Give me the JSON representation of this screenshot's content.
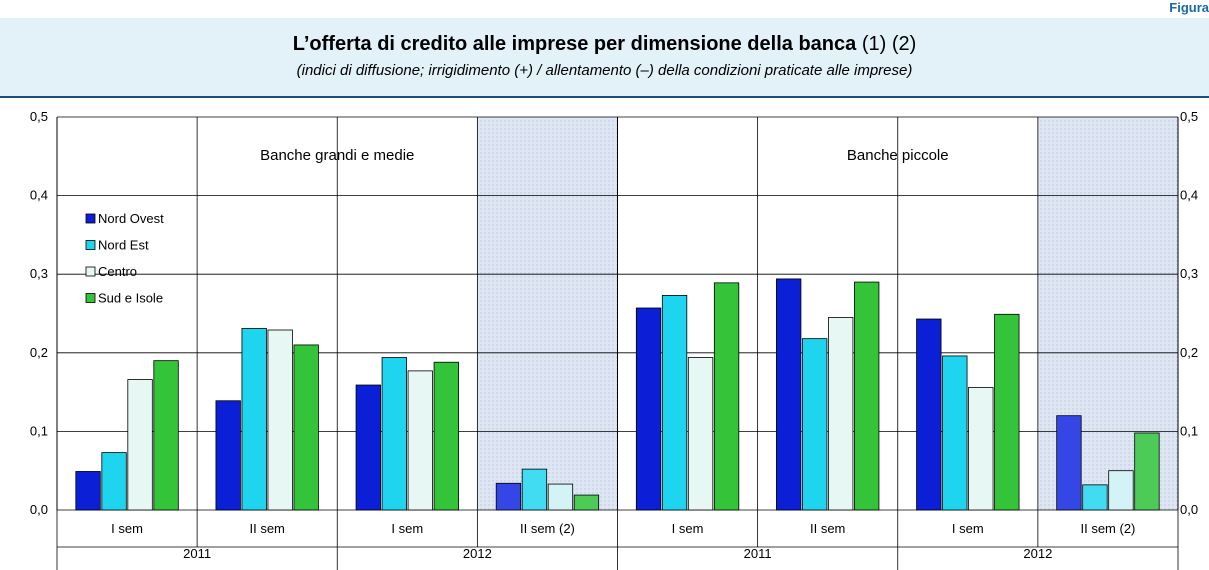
{
  "figure_label": "Figura",
  "title": "L’offerta di credito alle imprese per dimensione della banca",
  "title_notes": "(1) (2)",
  "subtitle": "(indici di diffusione; irrigidimento (+) / allentamento (–) della condizioni praticate alle imprese)",
  "colors": {
    "header_bg": "#e3f1f9",
    "header_rule": "#1a4f7a",
    "shade": "#dde6f2"
  },
  "chart_data": {
    "type": "bar",
    "ylim": [
      0,
      0.5
    ],
    "yticks": [
      "0,0",
      "0,1",
      "0,2",
      "0,3",
      "0,4",
      "0,5"
    ],
    "grid": true,
    "legend_position": "left",
    "panels": [
      {
        "name": "Banche grandi e medie",
        "categories": [
          "I sem",
          "II sem",
          "I sem",
          "II sem (2)"
        ],
        "years": [
          "2011",
          "2012"
        ],
        "shaded_category": 3,
        "series": [
          {
            "name": "Nord Ovest",
            "values": [
              0.049,
              0.139,
              0.159,
              0.034
            ]
          },
          {
            "name": "Nord Est",
            "values": [
              0.073,
              0.231,
              0.194,
              0.052
            ]
          },
          {
            "name": "Centro",
            "values": [
              0.166,
              0.229,
              0.177,
              0.033
            ]
          },
          {
            "name": "Sud e Isole",
            "values": [
              0.19,
              0.21,
              0.188,
              0.019
            ]
          }
        ]
      },
      {
        "name": "Banche piccole",
        "categories": [
          "I sem",
          "II sem",
          "I sem",
          "II sem (2)"
        ],
        "years": [
          "2011",
          "2012"
        ],
        "shaded_category": 3,
        "series": [
          {
            "name": "Nord Ovest",
            "values": [
              0.257,
              0.294,
              0.243,
              0.12
            ]
          },
          {
            "name": "Nord Est",
            "values": [
              0.273,
              0.218,
              0.196,
              0.032
            ]
          },
          {
            "name": "Centro",
            "values": [
              0.194,
              0.245,
              0.156,
              0.05
            ]
          },
          {
            "name": "Sud e Isole",
            "values": [
              0.289,
              0.29,
              0.249,
              0.098
            ]
          }
        ]
      }
    ],
    "series_colors": [
      "#0b1fd6",
      "#1fd4ef",
      "#e6f7f4",
      "#34c43a"
    ],
    "series_colors_estimate": [
      "#3446e6",
      "#41dbf2",
      "#d3f3f6",
      "#4ccc57"
    ]
  }
}
